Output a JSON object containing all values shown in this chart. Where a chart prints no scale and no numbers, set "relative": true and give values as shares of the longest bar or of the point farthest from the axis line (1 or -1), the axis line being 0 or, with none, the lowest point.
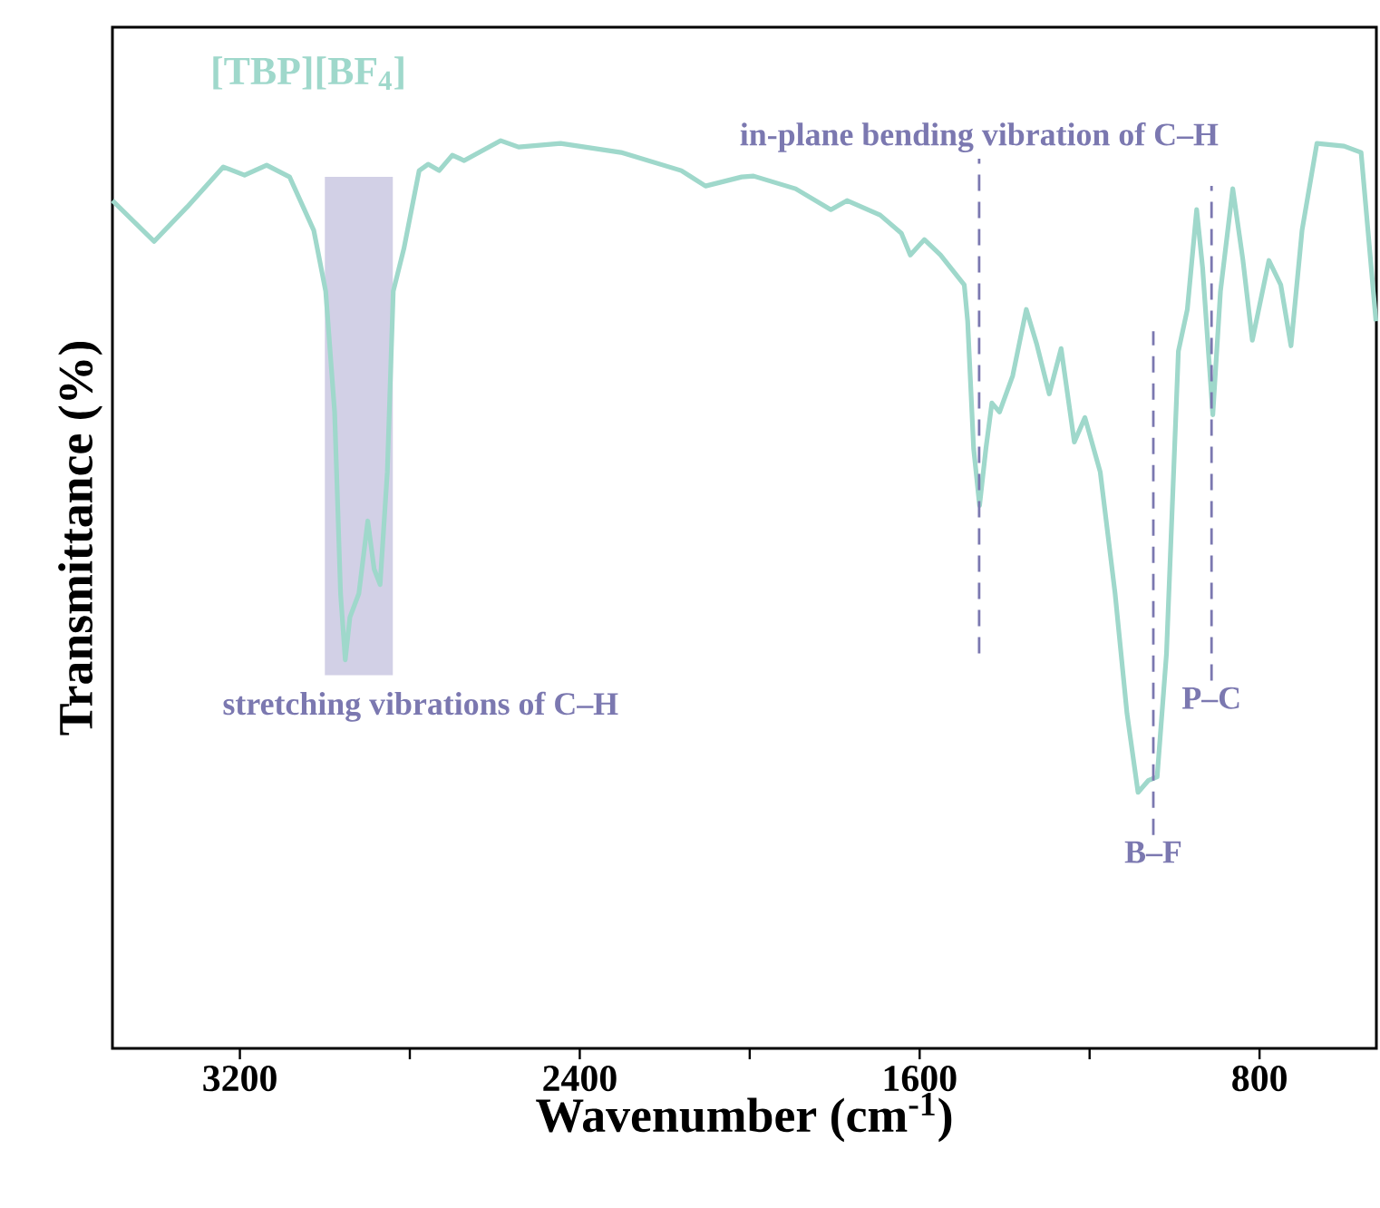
{
  "chart_data": {
    "type": "line",
    "relative": true,
    "xlabel": "Wavenumber (cm$^{-1}$)",
    "ylabel": "Transmittance (%)",
    "xlim": [
      3500,
      525
    ],
    "xticks": [
      3200,
      {
        "value": 2800,
        "label": null
      },
      2400,
      {
        "value": 2000,
        "label": null
      },
      1600,
      {
        "value": 1200,
        "label": null
      },
      800
    ],
    "series": [
      {
        "name": "[TBP][BF$_{4}$]",
        "color": "#9fd8cb",
        "x": [
          3500,
          3402,
          3324,
          3239,
          3189,
          3137,
          3083,
          3026,
          2998,
          2977,
          2963,
          2952,
          2941,
          2920,
          2899,
          2884,
          2870,
          2853,
          2839,
          2814,
          2778,
          2757,
          2731,
          2700,
          2672,
          2586,
          2544,
          2445,
          2303,
          2161,
          2104,
          2019,
          1991,
          1892,
          1809,
          1771,
          1693,
          1643,
          1622,
          1589,
          1551,
          1495,
          1487,
          1473,
          1459,
          1444,
          1430,
          1412,
          1381,
          1349,
          1324,
          1295,
          1267,
          1236,
          1211,
          1175,
          1140,
          1112,
          1086,
          1062,
          1041,
          1019,
          991,
          970,
          948,
          934,
          910,
          892,
          863,
          839,
          817,
          778,
          750,
          726,
          700,
          665,
          601,
          561,
          526
        ],
        "values": [
          0.934,
          0.889,
          0.927,
          0.971,
          0.962,
          0.973,
          0.96,
          0.901,
          0.834,
          0.701,
          0.501,
          0.428,
          0.475,
          0.501,
          0.581,
          0.528,
          0.511,
          0.635,
          0.834,
          0.881,
          0.967,
          0.974,
          0.967,
          0.984,
          0.978,
          1,
          0.993,
          0.997,
          0.987,
          0.967,
          0.95,
          0.96,
          0.961,
          0.947,
          0.924,
          0.934,
          0.918,
          0.898,
          0.874,
          0.891,
          0.874,
          0.841,
          0.801,
          0.661,
          0.598,
          0.661,
          0.711,
          0.701,
          0.741,
          0.814,
          0.775,
          0.721,
          0.771,
          0.668,
          0.695,
          0.635,
          0.501,
          0.369,
          0.282,
          0.295,
          0.299,
          0.435,
          0.768,
          0.814,
          0.924,
          0.86,
          0.698,
          0.834,
          0.947,
          0.868,
          0.78,
          0.868,
          0.841,
          0.774,
          0.901,
          0.997,
          0.994,
          0.987,
          0.801
        ]
      }
    ],
    "bands": [
      {
        "axis": "x",
        "from": 3000,
        "to": 2840,
        "label": "stretching vibrations of C–H",
        "color": "#d2d0e6"
      }
    ],
    "ref_lines": [
      {
        "axis": "x",
        "value": 1460,
        "label": "in-plane bending vibration of C–H",
        "color": "#7b78b0",
        "line_style": "dashed"
      },
      {
        "axis": "x",
        "value": 1050,
        "label": "B–F",
        "color": "#7b78b0",
        "line_style": "dashed"
      },
      {
        "axis": "x",
        "value": 913,
        "label": "P–C",
        "color": "#7b78b0",
        "line_style": "dashed"
      }
    ]
  }
}
